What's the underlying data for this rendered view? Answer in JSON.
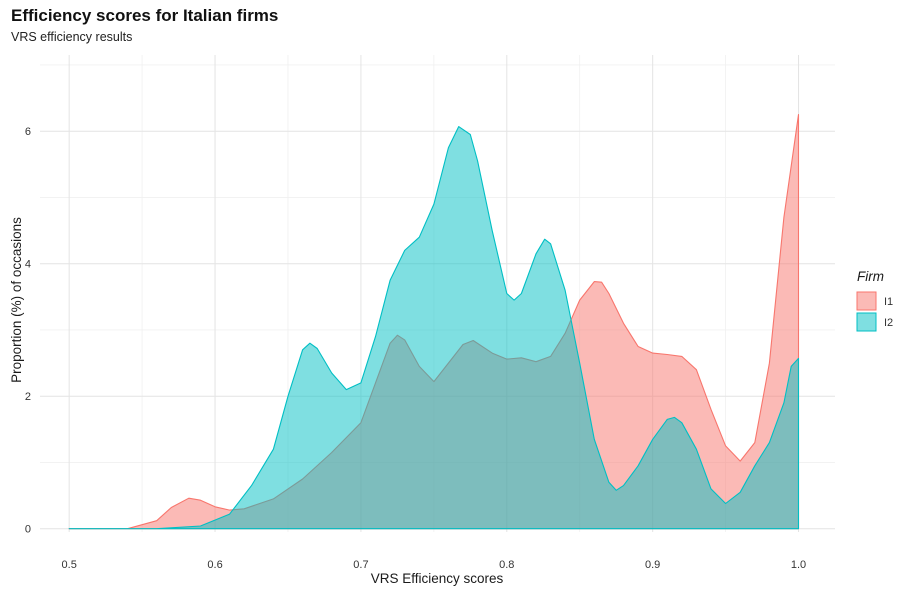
{
  "chart_data": {
    "type": "area",
    "title": "Efficiency scores for Italian firms",
    "subtitle": "VRS efficiency results",
    "xlabel": "VRS Efficiency scores",
    "ylabel": "Proportion (%) of occasions",
    "xlim": [
      0.48,
      1.025
    ],
    "ylim": [
      -0.05,
      7.15
    ],
    "x_ticks": [
      0.5,
      0.6,
      0.7,
      0.8,
      0.9,
      1.0
    ],
    "x_tick_labels": [
      "0.5",
      "0.6",
      "0.7",
      "0.8",
      "0.9",
      "1.0"
    ],
    "y_ticks": [
      0,
      2,
      4,
      6
    ],
    "y_tick_labels": [
      "0",
      "2",
      "4",
      "6"
    ],
    "grid": true,
    "legend": {
      "title": "Firm",
      "position": "right"
    },
    "series": [
      {
        "name": "I1",
        "color": "#F8766D",
        "points": [
          [
            0.5,
            0
          ],
          [
            0.54,
            0
          ],
          [
            0.56,
            0.12
          ],
          [
            0.57,
            0.32
          ],
          [
            0.582,
            0.46
          ],
          [
            0.59,
            0.43
          ],
          [
            0.6,
            0.33
          ],
          [
            0.61,
            0.28
          ],
          [
            0.62,
            0.3
          ],
          [
            0.64,
            0.45
          ],
          [
            0.66,
            0.75
          ],
          [
            0.68,
            1.15
          ],
          [
            0.7,
            1.6
          ],
          [
            0.71,
            2.2
          ],
          [
            0.72,
            2.8
          ],
          [
            0.725,
            2.92
          ],
          [
            0.73,
            2.85
          ],
          [
            0.74,
            2.45
          ],
          [
            0.75,
            2.22
          ],
          [
            0.76,
            2.5
          ],
          [
            0.77,
            2.78
          ],
          [
            0.777,
            2.84
          ],
          [
            0.79,
            2.65
          ],
          [
            0.8,
            2.56
          ],
          [
            0.81,
            2.58
          ],
          [
            0.82,
            2.52
          ],
          [
            0.83,
            2.6
          ],
          [
            0.84,
            2.95
          ],
          [
            0.85,
            3.45
          ],
          [
            0.86,
            3.73
          ],
          [
            0.865,
            3.72
          ],
          [
            0.87,
            3.55
          ],
          [
            0.88,
            3.1
          ],
          [
            0.89,
            2.75
          ],
          [
            0.9,
            2.65
          ],
          [
            0.91,
            2.63
          ],
          [
            0.92,
            2.6
          ],
          [
            0.93,
            2.4
          ],
          [
            0.94,
            1.8
          ],
          [
            0.95,
            1.25
          ],
          [
            0.96,
            1.02
          ],
          [
            0.97,
            1.3
          ],
          [
            0.98,
            2.5
          ],
          [
            0.99,
            4.7
          ],
          [
            1.0,
            6.25
          ],
          [
            1.0,
            0
          ]
        ]
      },
      {
        "name": "I2",
        "color": "#00BFC4",
        "points": [
          [
            0.5,
            0
          ],
          [
            0.56,
            0
          ],
          [
            0.59,
            0.04
          ],
          [
            0.61,
            0.22
          ],
          [
            0.625,
            0.65
          ],
          [
            0.64,
            1.2
          ],
          [
            0.65,
            2.0
          ],
          [
            0.66,
            2.7
          ],
          [
            0.665,
            2.8
          ],
          [
            0.67,
            2.72
          ],
          [
            0.68,
            2.35
          ],
          [
            0.69,
            2.1
          ],
          [
            0.7,
            2.2
          ],
          [
            0.71,
            2.9
          ],
          [
            0.72,
            3.75
          ],
          [
            0.73,
            4.2
          ],
          [
            0.74,
            4.4
          ],
          [
            0.75,
            4.9
          ],
          [
            0.76,
            5.75
          ],
          [
            0.767,
            6.07
          ],
          [
            0.775,
            5.95
          ],
          [
            0.78,
            5.55
          ],
          [
            0.79,
            4.5
          ],
          [
            0.8,
            3.55
          ],
          [
            0.805,
            3.45
          ],
          [
            0.81,
            3.55
          ],
          [
            0.82,
            4.15
          ],
          [
            0.826,
            4.37
          ],
          [
            0.83,
            4.3
          ],
          [
            0.84,
            3.6
          ],
          [
            0.85,
            2.5
          ],
          [
            0.86,
            1.35
          ],
          [
            0.87,
            0.7
          ],
          [
            0.875,
            0.58
          ],
          [
            0.88,
            0.65
          ],
          [
            0.89,
            0.95
          ],
          [
            0.9,
            1.35
          ],
          [
            0.91,
            1.65
          ],
          [
            0.915,
            1.68
          ],
          [
            0.92,
            1.6
          ],
          [
            0.93,
            1.2
          ],
          [
            0.94,
            0.6
          ],
          [
            0.95,
            0.38
          ],
          [
            0.96,
            0.55
          ],
          [
            0.97,
            0.95
          ],
          [
            0.98,
            1.3
          ],
          [
            0.99,
            1.9
          ],
          [
            0.995,
            2.45
          ],
          [
            1.0,
            2.57
          ],
          [
            1.0,
            0
          ]
        ]
      }
    ]
  }
}
